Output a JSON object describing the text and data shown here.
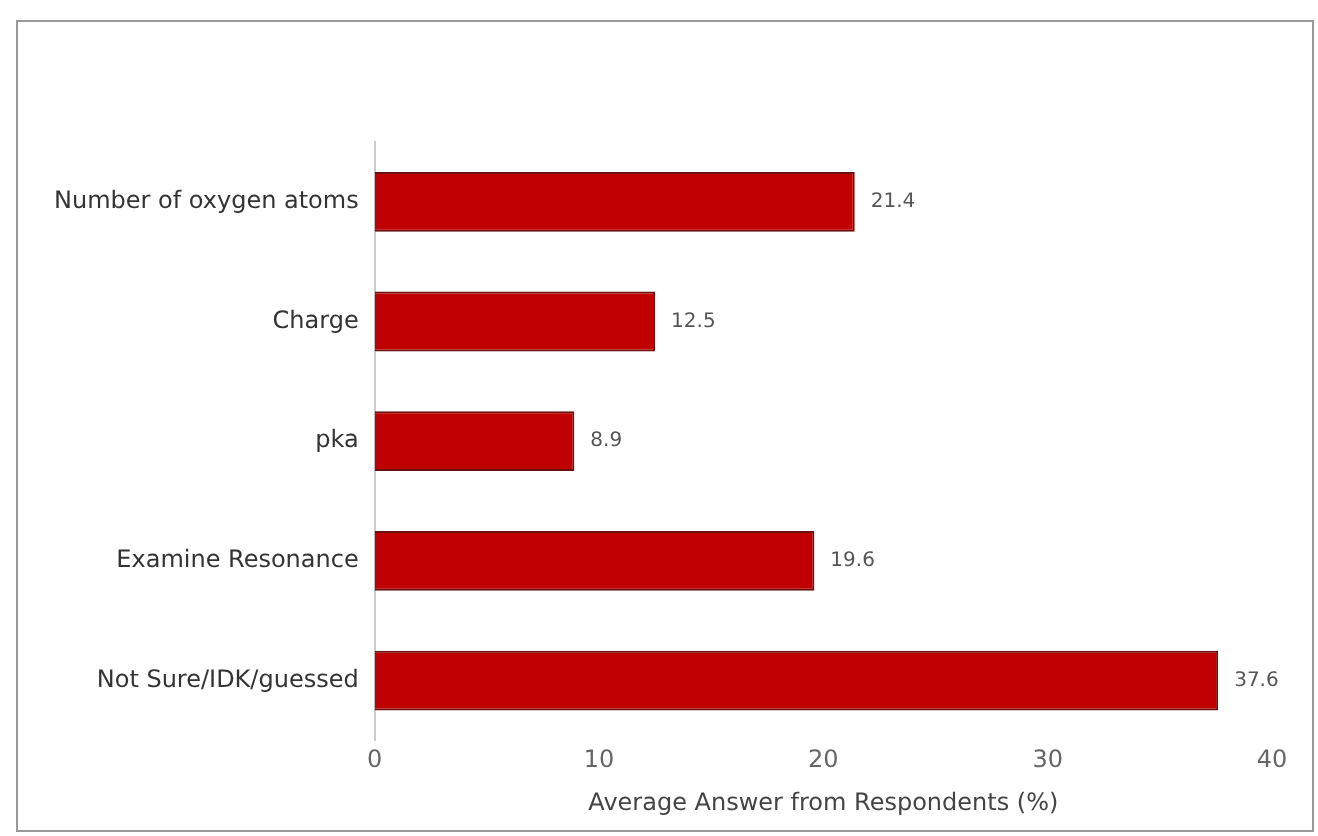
{
  "chart_data": {
    "type": "bar",
    "orientation": "horizontal",
    "xlabel": "Average Answer from Respondents (%)",
    "categories": [
      "Number of oxygen atoms",
      "Charge",
      "pka",
      "Examine Resonance",
      "Not Sure/IDK/guessed"
    ],
    "values": [
      21.4,
      12.5,
      8.9,
      19.6,
      37.6
    ],
    "color": "#c00000",
    "xlim": [
      0,
      40
    ],
    "xticks": [
      0,
      10,
      20,
      30,
      40
    ],
    "grid": false,
    "data_labels": true
  }
}
